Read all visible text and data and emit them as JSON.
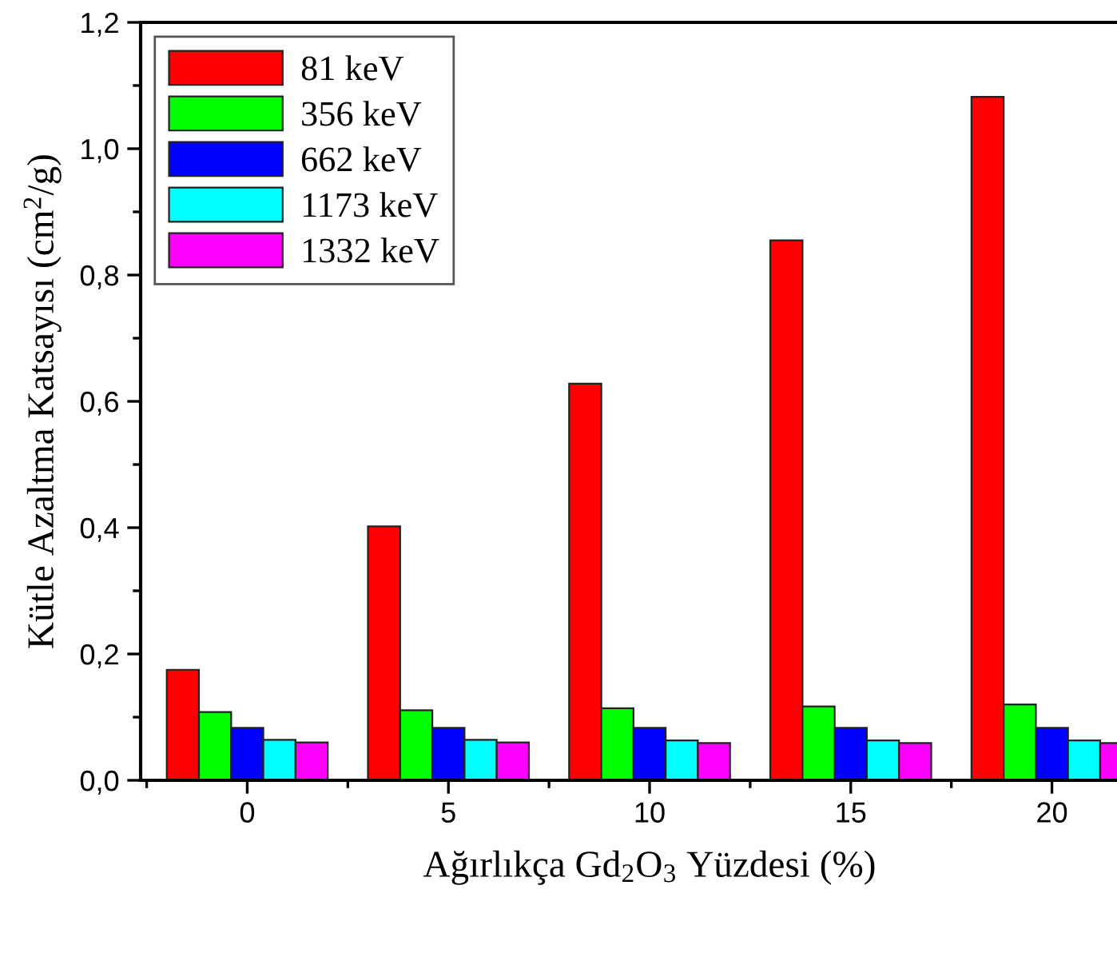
{
  "chart_data": {
    "type": "bar",
    "xlabel": "Ağırlıkça Gd$_{2}$O$_{3}$ Yüzdesi (%)",
    "ylabel": "Kütle Azaltma Katsayısı (cm$^{2}$/g)",
    "categories": [
      "0",
      "5",
      "10",
      "15",
      "20"
    ],
    "series": [
      {
        "name": "81 keV",
        "color": "#ff0000",
        "values": [
          0.175,
          0.402,
          0.628,
          0.855,
          1.082
        ]
      },
      {
        "name": "356 keV",
        "color": "#00ff00",
        "values": [
          0.108,
          0.111,
          0.114,
          0.117,
          0.12
        ]
      },
      {
        "name": "662 keV",
        "color": "#0000ff",
        "values": [
          0.083,
          0.083,
          0.083,
          0.083,
          0.083
        ]
      },
      {
        "name": "1173 keV",
        "color": "#00ffff",
        "values": [
          0.064,
          0.064,
          0.063,
          0.063,
          0.063
        ]
      },
      {
        "name": "1332 keV",
        "color": "#ff00ff",
        "values": [
          0.06,
          0.06,
          0.059,
          0.059,
          0.059
        ]
      }
    ],
    "ylim": [
      0,
      1.2
    ],
    "yticks": [
      {
        "value": 0,
        "label": "0,0"
      },
      {
        "value": 0.2,
        "label": "0,2"
      },
      {
        "value": 0.4,
        "label": "0,4"
      },
      {
        "value": 0.6,
        "label": "0,6"
      },
      {
        "value": 0.8,
        "label": "0,8"
      },
      {
        "value": 1.0,
        "label": "1,0"
      },
      {
        "value": 1.2,
        "label": "1,2"
      }
    ],
    "grid": false,
    "legend": "top left"
  }
}
